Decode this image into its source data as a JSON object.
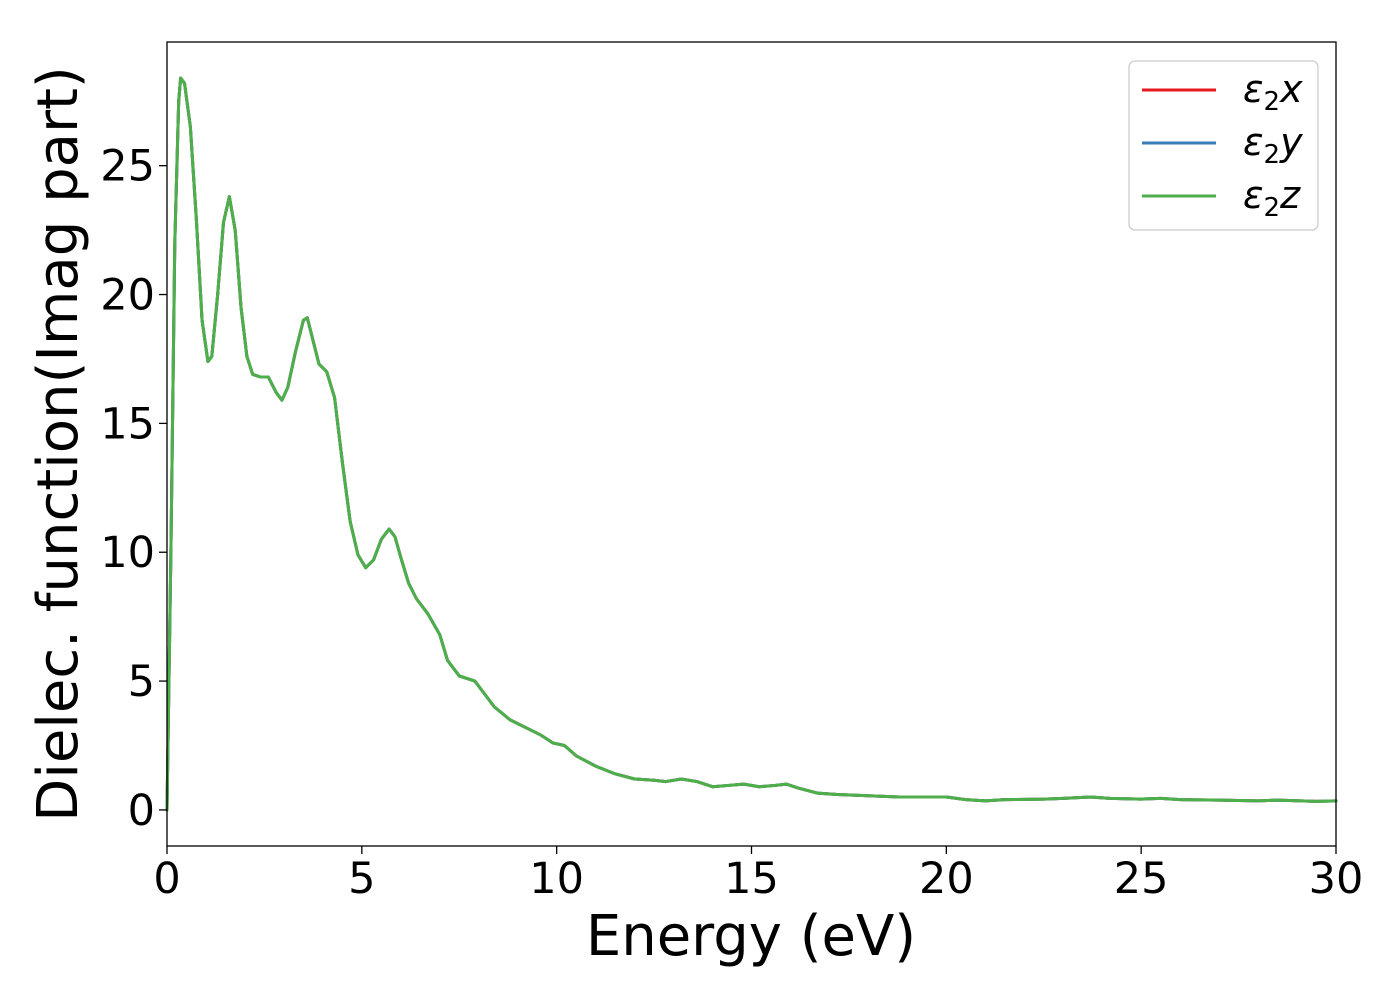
{
  "chart_data": {
    "type": "line",
    "title": "",
    "xlabel": "Energy (eV)",
    "ylabel": "Dielec. function(Imag part)",
    "xlim": [
      0,
      30
    ],
    "ylim": [
      -1.4,
      29.8
    ],
    "xticks": [
      0,
      5,
      10,
      15,
      20,
      25,
      30
    ],
    "yticks": [
      0,
      5,
      10,
      15,
      20,
      25
    ],
    "grid": false,
    "legend_position": "top-right",
    "series": [
      {
        "name": "ε₂x",
        "legend": {
          "symbol": "ε",
          "sub": "2",
          "var": "x"
        },
        "color": "#e41a1c",
        "points": [
          [
            0,
            0
          ],
          [
            0.1,
            10
          ],
          [
            0.2,
            22
          ],
          [
            0.3,
            27.5
          ],
          [
            0.35,
            28.4
          ],
          [
            0.45,
            28.2
          ],
          [
            0.6,
            26.5
          ],
          [
            0.75,
            23
          ],
          [
            0.9,
            19
          ],
          [
            1.05,
            17.4
          ],
          [
            1.15,
            17.6
          ],
          [
            1.3,
            20
          ],
          [
            1.45,
            22.8
          ],
          [
            1.6,
            23.8
          ],
          [
            1.75,
            22.5
          ],
          [
            1.9,
            19.5
          ],
          [
            2.05,
            17.6
          ],
          [
            2.2,
            16.9
          ],
          [
            2.4,
            16.8
          ],
          [
            2.6,
            16.8
          ],
          [
            2.8,
            16.2
          ],
          [
            2.95,
            15.9
          ],
          [
            3.1,
            16.4
          ],
          [
            3.3,
            17.8
          ],
          [
            3.5,
            19
          ],
          [
            3.6,
            19.1
          ],
          [
            3.75,
            18.2
          ],
          [
            3.9,
            17.3
          ],
          [
            4.1,
            17
          ],
          [
            4.3,
            16
          ],
          [
            4.5,
            13.5
          ],
          [
            4.7,
            11.2
          ],
          [
            4.9,
            9.9
          ],
          [
            5.1,
            9.4
          ],
          [
            5.3,
            9.7
          ],
          [
            5.5,
            10.5
          ],
          [
            5.7,
            10.9
          ],
          [
            5.85,
            10.6
          ],
          [
            6.0,
            9.8
          ],
          [
            6.2,
            8.8
          ],
          [
            6.4,
            8.2
          ],
          [
            6.7,
            7.6
          ],
          [
            7.0,
            6.8
          ],
          [
            7.2,
            5.8
          ],
          [
            7.5,
            5.2
          ],
          [
            7.9,
            5.0
          ],
          [
            8.1,
            4.6
          ],
          [
            8.4,
            4.0
          ],
          [
            8.8,
            3.5
          ],
          [
            9.2,
            3.2
          ],
          [
            9.6,
            2.9
          ],
          [
            9.9,
            2.6
          ],
          [
            10.2,
            2.5
          ],
          [
            10.5,
            2.1
          ],
          [
            11.0,
            1.7
          ],
          [
            11.5,
            1.4
          ],
          [
            12.0,
            1.2
          ],
          [
            12.5,
            1.15
          ],
          [
            12.8,
            1.1
          ],
          [
            13.2,
            1.2
          ],
          [
            13.6,
            1.1
          ],
          [
            14.0,
            0.9
          ],
          [
            14.4,
            0.95
          ],
          [
            14.8,
            1.0
          ],
          [
            15.2,
            0.9
          ],
          [
            15.6,
            0.95
          ],
          [
            15.9,
            1.0
          ],
          [
            16.2,
            0.85
          ],
          [
            16.7,
            0.65
          ],
          [
            17.2,
            0.6
          ],
          [
            18.0,
            0.55
          ],
          [
            18.8,
            0.5
          ],
          [
            19.5,
            0.5
          ],
          [
            20.0,
            0.5
          ],
          [
            20.5,
            0.4
          ],
          [
            21.0,
            0.35
          ],
          [
            21.5,
            0.4
          ],
          [
            22.5,
            0.42
          ],
          [
            23.0,
            0.45
          ],
          [
            23.7,
            0.5
          ],
          [
            24.2,
            0.45
          ],
          [
            25.0,
            0.42
          ],
          [
            25.5,
            0.45
          ],
          [
            26.0,
            0.4
          ],
          [
            27.0,
            0.38
          ],
          [
            28.0,
            0.35
          ],
          [
            28.5,
            0.38
          ],
          [
            29.5,
            0.33
          ],
          [
            30.0,
            0.35
          ]
        ]
      },
      {
        "name": "ε₂y",
        "legend": {
          "symbol": "ε",
          "sub": "2",
          "var": "y"
        },
        "color": "#377eb8",
        "points": [
          [
            0,
            0
          ],
          [
            0.1,
            10
          ],
          [
            0.2,
            22
          ],
          [
            0.3,
            27.5
          ],
          [
            0.35,
            28.4
          ],
          [
            0.45,
            28.2
          ],
          [
            0.6,
            26.5
          ],
          [
            0.75,
            23
          ],
          [
            0.9,
            19
          ],
          [
            1.05,
            17.4
          ],
          [
            1.15,
            17.6
          ],
          [
            1.3,
            20
          ],
          [
            1.45,
            22.8
          ],
          [
            1.6,
            23.8
          ],
          [
            1.75,
            22.5
          ],
          [
            1.9,
            19.5
          ],
          [
            2.05,
            17.6
          ],
          [
            2.2,
            16.9
          ],
          [
            2.4,
            16.8
          ],
          [
            2.6,
            16.8
          ],
          [
            2.8,
            16.2
          ],
          [
            2.95,
            15.9
          ],
          [
            3.1,
            16.4
          ],
          [
            3.3,
            17.8
          ],
          [
            3.5,
            19
          ],
          [
            3.6,
            19.1
          ],
          [
            3.75,
            18.2
          ],
          [
            3.9,
            17.3
          ],
          [
            4.1,
            17
          ],
          [
            4.3,
            16
          ],
          [
            4.5,
            13.5
          ],
          [
            4.7,
            11.2
          ],
          [
            4.9,
            9.9
          ],
          [
            5.1,
            9.4
          ],
          [
            5.3,
            9.7
          ],
          [
            5.5,
            10.5
          ],
          [
            5.7,
            10.9
          ],
          [
            5.85,
            10.6
          ],
          [
            6.0,
            9.8
          ],
          [
            6.2,
            8.8
          ],
          [
            6.4,
            8.2
          ],
          [
            6.7,
            7.6
          ],
          [
            7.0,
            6.8
          ],
          [
            7.2,
            5.8
          ],
          [
            7.5,
            5.2
          ],
          [
            7.9,
            5.0
          ],
          [
            8.1,
            4.6
          ],
          [
            8.4,
            4.0
          ],
          [
            8.8,
            3.5
          ],
          [
            9.2,
            3.2
          ],
          [
            9.6,
            2.9
          ],
          [
            9.9,
            2.6
          ],
          [
            10.2,
            2.5
          ],
          [
            10.5,
            2.1
          ],
          [
            11.0,
            1.7
          ],
          [
            11.5,
            1.4
          ],
          [
            12.0,
            1.2
          ],
          [
            12.5,
            1.15
          ],
          [
            12.8,
            1.1
          ],
          [
            13.2,
            1.2
          ],
          [
            13.6,
            1.1
          ],
          [
            14.0,
            0.9
          ],
          [
            14.4,
            0.95
          ],
          [
            14.8,
            1.0
          ],
          [
            15.2,
            0.9
          ],
          [
            15.6,
            0.95
          ],
          [
            15.9,
            1.0
          ],
          [
            16.2,
            0.85
          ],
          [
            16.7,
            0.65
          ],
          [
            17.2,
            0.6
          ],
          [
            18.0,
            0.55
          ],
          [
            18.8,
            0.5
          ],
          [
            19.5,
            0.5
          ],
          [
            20.0,
            0.5
          ],
          [
            20.5,
            0.4
          ],
          [
            21.0,
            0.35
          ],
          [
            21.5,
            0.4
          ],
          [
            22.5,
            0.42
          ],
          [
            23.0,
            0.45
          ],
          [
            23.7,
            0.5
          ],
          [
            24.2,
            0.45
          ],
          [
            25.0,
            0.42
          ],
          [
            25.5,
            0.45
          ],
          [
            26.0,
            0.4
          ],
          [
            27.0,
            0.38
          ],
          [
            28.0,
            0.35
          ],
          [
            28.5,
            0.38
          ],
          [
            29.5,
            0.33
          ],
          [
            30.0,
            0.35
          ]
        ]
      },
      {
        "name": "ε₂z",
        "legend": {
          "symbol": "ε",
          "sub": "2",
          "var": "z"
        },
        "color": "#4daf4a",
        "points": [
          [
            0,
            0
          ],
          [
            0.1,
            10
          ],
          [
            0.2,
            22
          ],
          [
            0.3,
            27.5
          ],
          [
            0.35,
            28.4
          ],
          [
            0.45,
            28.2
          ],
          [
            0.6,
            26.5
          ],
          [
            0.75,
            23
          ],
          [
            0.9,
            19
          ],
          [
            1.05,
            17.4
          ],
          [
            1.15,
            17.6
          ],
          [
            1.3,
            20
          ],
          [
            1.45,
            22.8
          ],
          [
            1.6,
            23.8
          ],
          [
            1.75,
            22.5
          ],
          [
            1.9,
            19.5
          ],
          [
            2.05,
            17.6
          ],
          [
            2.2,
            16.9
          ],
          [
            2.4,
            16.8
          ],
          [
            2.6,
            16.8
          ],
          [
            2.8,
            16.2
          ],
          [
            2.95,
            15.9
          ],
          [
            3.1,
            16.4
          ],
          [
            3.3,
            17.8
          ],
          [
            3.5,
            19
          ],
          [
            3.6,
            19.1
          ],
          [
            3.75,
            18.2
          ],
          [
            3.9,
            17.3
          ],
          [
            4.1,
            17
          ],
          [
            4.3,
            16
          ],
          [
            4.5,
            13.5
          ],
          [
            4.7,
            11.2
          ],
          [
            4.9,
            9.9
          ],
          [
            5.1,
            9.4
          ],
          [
            5.3,
            9.7
          ],
          [
            5.5,
            10.5
          ],
          [
            5.7,
            10.9
          ],
          [
            5.85,
            10.6
          ],
          [
            6.0,
            9.8
          ],
          [
            6.2,
            8.8
          ],
          [
            6.4,
            8.2
          ],
          [
            6.7,
            7.6
          ],
          [
            7.0,
            6.8
          ],
          [
            7.2,
            5.8
          ],
          [
            7.5,
            5.2
          ],
          [
            7.9,
            5.0
          ],
          [
            8.1,
            4.6
          ],
          [
            8.4,
            4.0
          ],
          [
            8.8,
            3.5
          ],
          [
            9.2,
            3.2
          ],
          [
            9.6,
            2.9
          ],
          [
            9.9,
            2.6
          ],
          [
            10.2,
            2.5
          ],
          [
            10.5,
            2.1
          ],
          [
            11.0,
            1.7
          ],
          [
            11.5,
            1.4
          ],
          [
            12.0,
            1.2
          ],
          [
            12.5,
            1.15
          ],
          [
            12.8,
            1.1
          ],
          [
            13.2,
            1.2
          ],
          [
            13.6,
            1.1
          ],
          [
            14.0,
            0.9
          ],
          [
            14.4,
            0.95
          ],
          [
            14.8,
            1.0
          ],
          [
            15.2,
            0.9
          ],
          [
            15.6,
            0.95
          ],
          [
            15.9,
            1.0
          ],
          [
            16.2,
            0.85
          ],
          [
            16.7,
            0.65
          ],
          [
            17.2,
            0.6
          ],
          [
            18.0,
            0.55
          ],
          [
            18.8,
            0.5
          ],
          [
            19.5,
            0.5
          ],
          [
            20.0,
            0.5
          ],
          [
            20.5,
            0.4
          ],
          [
            21.0,
            0.35
          ],
          [
            21.5,
            0.4
          ],
          [
            22.5,
            0.42
          ],
          [
            23.0,
            0.45
          ],
          [
            23.7,
            0.5
          ],
          [
            24.2,
            0.45
          ],
          [
            25.0,
            0.42
          ],
          [
            25.5,
            0.45
          ],
          [
            26.0,
            0.4
          ],
          [
            27.0,
            0.38
          ],
          [
            28.0,
            0.35
          ],
          [
            28.5,
            0.38
          ],
          [
            29.5,
            0.33
          ],
          [
            30.0,
            0.35
          ]
        ]
      }
    ]
  }
}
